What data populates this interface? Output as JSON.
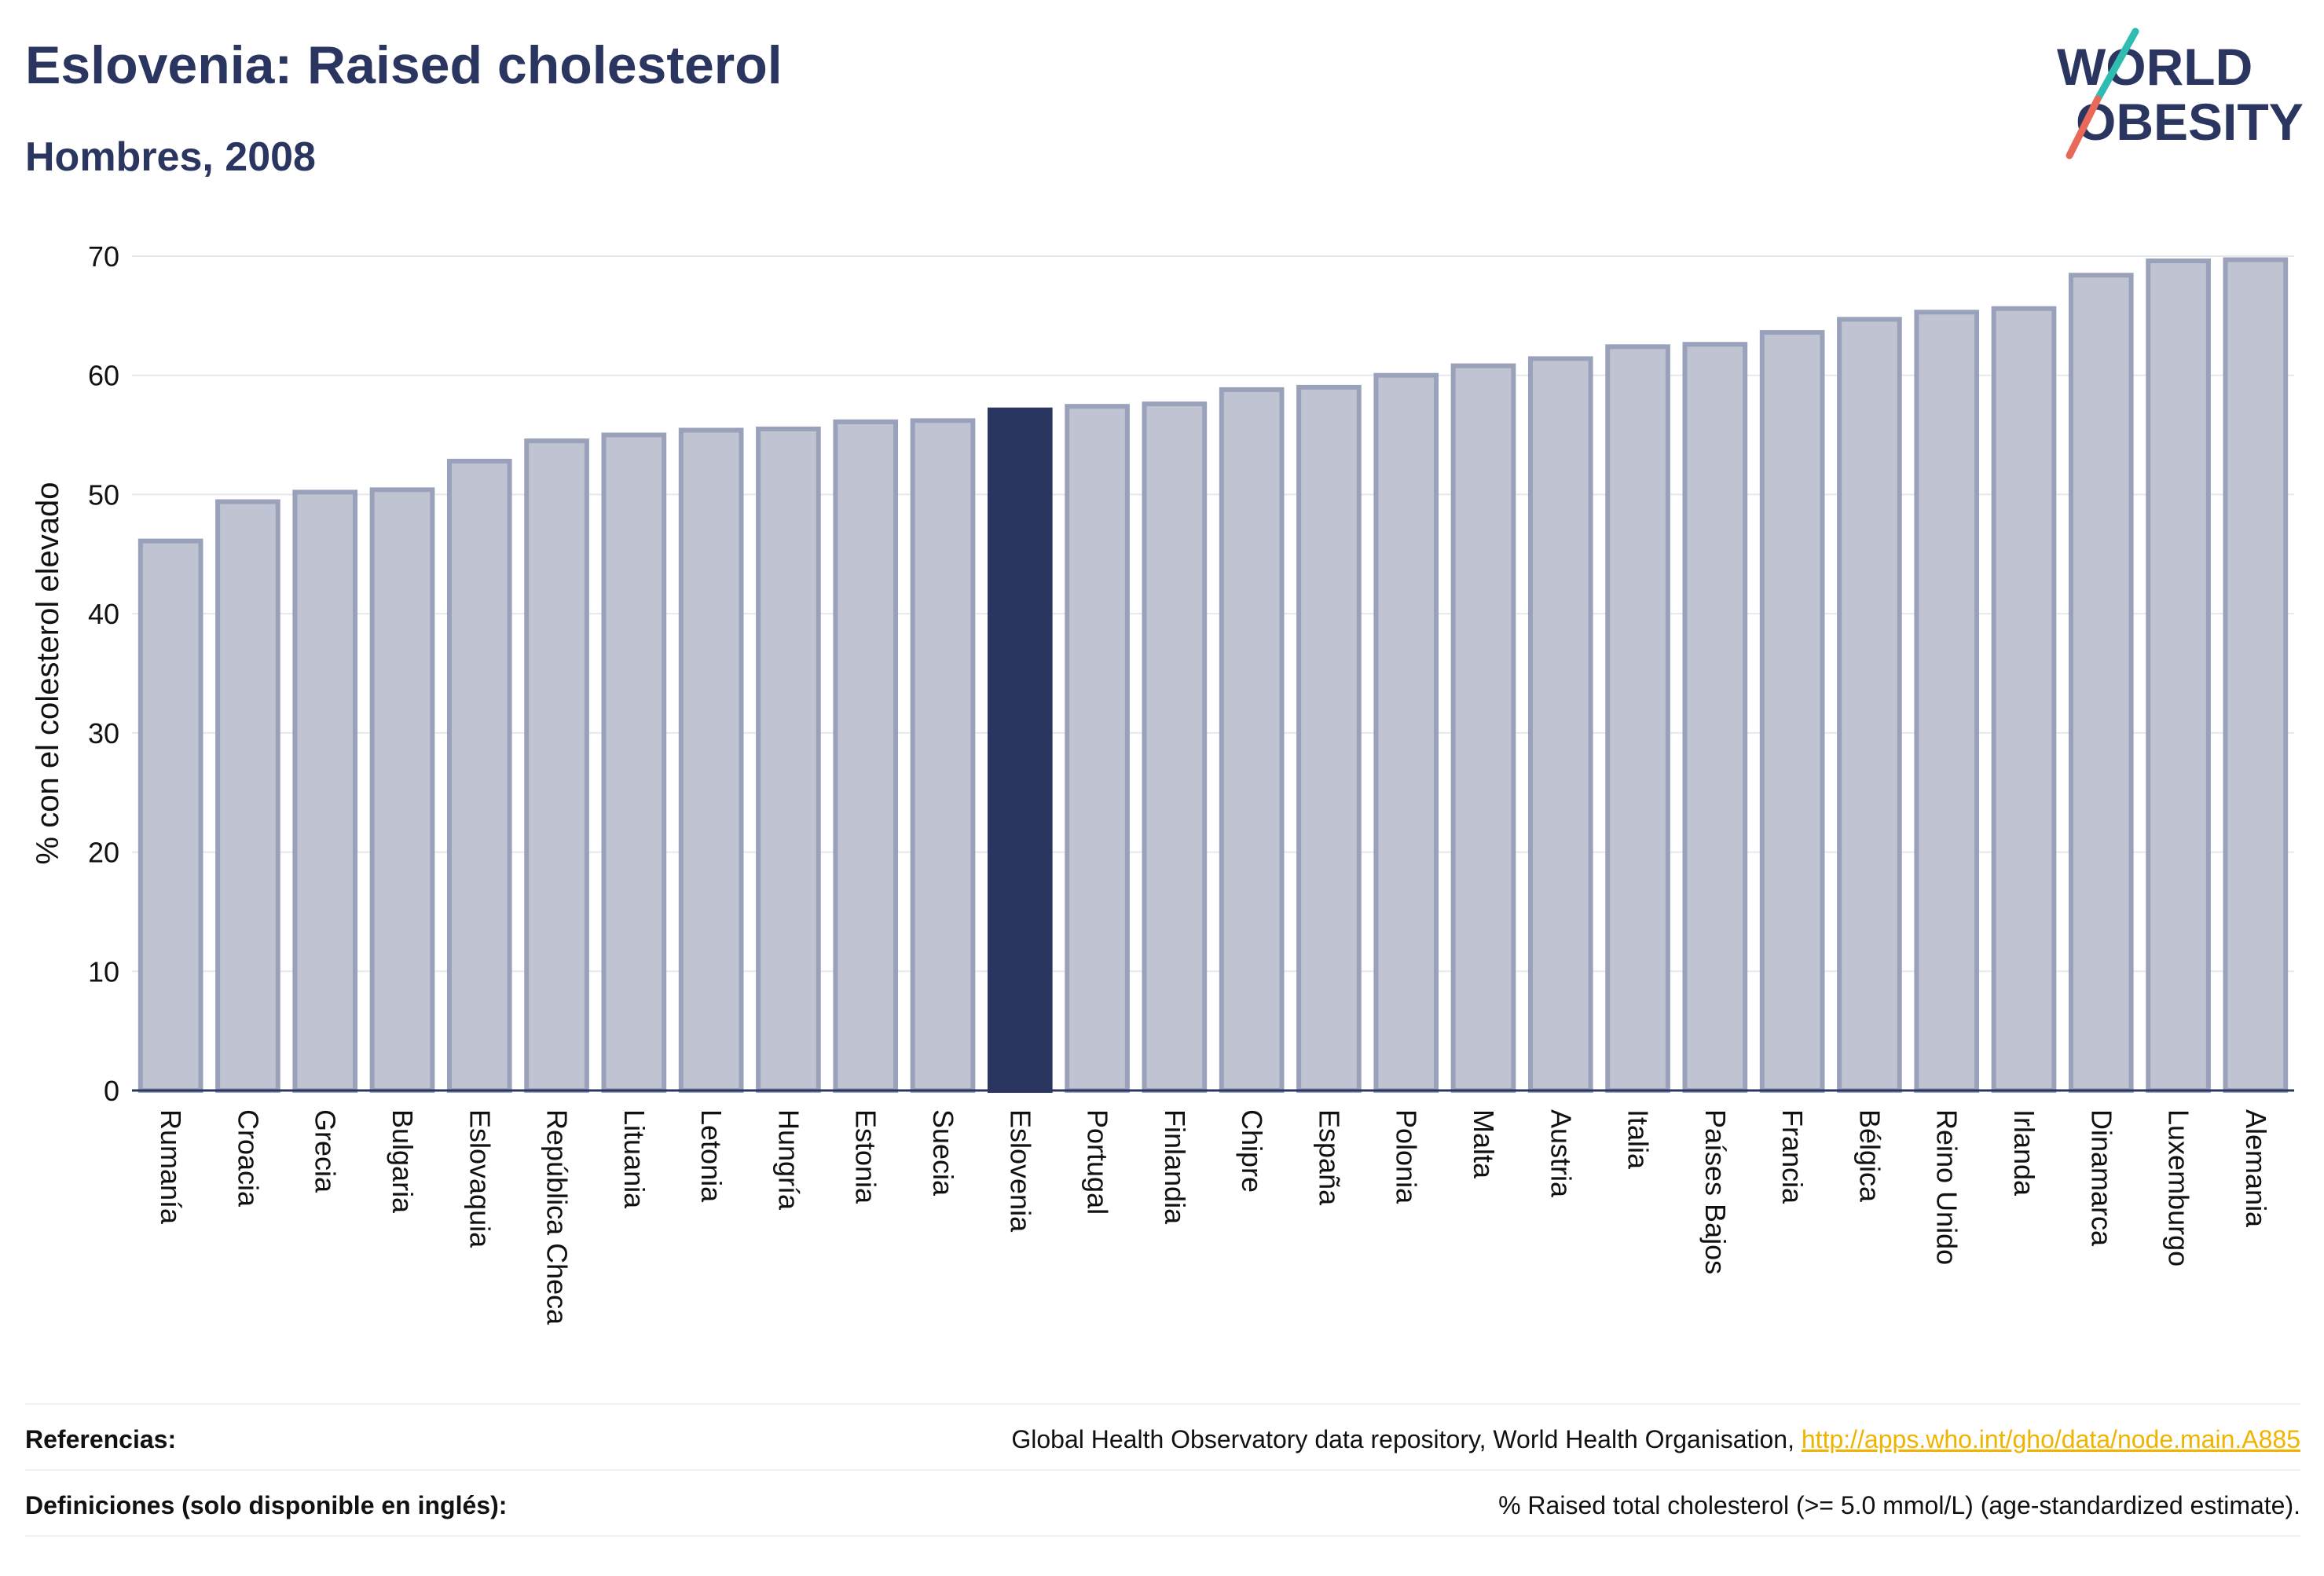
{
  "header": {
    "title": "Eslovenia: Raised cholesterol",
    "subtitle": "Hombres, 2008"
  },
  "logo": {
    "line1": "WORLD",
    "line2": "OBESITY"
  },
  "colors": {
    "bar_default": "#c0c4d2",
    "bar_border": "#9aa1bb",
    "bar_highlight": "#2a3560",
    "text_dark": "#2a3560",
    "link": "#f0b400"
  },
  "chart_data": {
    "type": "bar",
    "ylabel": "% con el colesterol elevado",
    "ylim": [
      0,
      70
    ],
    "yticks": [
      0,
      10,
      20,
      30,
      40,
      50,
      60,
      70
    ],
    "grid": true,
    "highlight": "Eslovenia",
    "categories": [
      "Rumanía",
      "Croacia",
      "Grecia",
      "Bulgaria",
      "Eslovaquia",
      "República Checa",
      "Lituania",
      "Letonia",
      "Hungría",
      "Estonia",
      "Suecia",
      "Eslovenia",
      "Portugal",
      "Finlandia",
      "Chipre",
      "España",
      "Polonia",
      "Malta",
      "Austria",
      "Italia",
      "Países Bajos",
      "Francia",
      "Bélgica",
      "Reino Unido",
      "Irlanda",
      "Dinamarca",
      "Luxemburgo",
      "Alemania"
    ],
    "values": [
      46.1,
      49.4,
      50.2,
      50.4,
      52.8,
      54.5,
      55.0,
      55.4,
      55.5,
      56.1,
      56.2,
      57.1,
      57.4,
      57.6,
      58.8,
      59.0,
      60.0,
      60.8,
      61.4,
      62.4,
      62.6,
      63.6,
      64.7,
      65.3,
      65.6,
      68.4,
      69.6,
      69.7
    ]
  },
  "footer": {
    "references_label": "Referencias:",
    "references_text": "Global Health Observatory data repository, World Health Organisation,",
    "references_link": "http://apps.who.int/gho/data/node.main.A885",
    "definitions_label": "Definiciones (solo disponible en inglés):",
    "definitions_text": "% Raised total cholesterol (>= 5.0 mmol/L) (age-standardized estimate)."
  }
}
